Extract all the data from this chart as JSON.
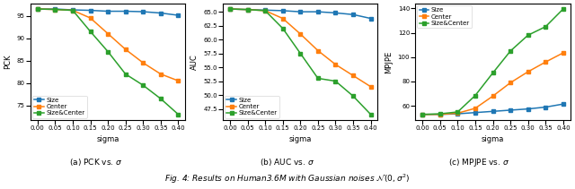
{
  "sigma": [
    0.0,
    0.05,
    0.1,
    0.15,
    0.2,
    0.25,
    0.3,
    0.35,
    0.4
  ],
  "pck_size": [
    96.5,
    96.5,
    96.3,
    96.2,
    96.0,
    96.0,
    95.9,
    95.6,
    95.1
  ],
  "pck_center": [
    96.5,
    96.4,
    96.2,
    94.5,
    91.0,
    87.5,
    84.5,
    82.0,
    80.5
  ],
  "pck_sizecenter": [
    96.5,
    96.4,
    96.2,
    91.5,
    87.0,
    82.0,
    79.5,
    76.5,
    73.0
  ],
  "auc_size": [
    65.5,
    65.4,
    65.3,
    65.2,
    65.0,
    65.0,
    64.8,
    64.5,
    63.8
  ],
  "auc_center": [
    65.5,
    65.4,
    65.2,
    63.8,
    61.0,
    58.0,
    55.5,
    53.5,
    51.5
  ],
  "auc_sizecenter": [
    65.5,
    65.4,
    65.2,
    62.0,
    57.5,
    53.0,
    52.5,
    49.8,
    46.5
  ],
  "mpjpe_size": [
    53.0,
    53.0,
    53.5,
    54.5,
    55.5,
    56.5,
    57.5,
    59.0,
    61.5
  ],
  "mpjpe_center": [
    53.0,
    53.0,
    54.0,
    58.0,
    68.0,
    79.0,
    88.0,
    96.0,
    103.5
  ],
  "mpjpe_sizecenter": [
    53.0,
    53.5,
    55.0,
    68.5,
    87.0,
    105.0,
    118.0,
    125.0,
    139.5
  ],
  "color_size": "#1f77b4",
  "color_center": "#ff7f0e",
  "color_sizeandcenter": "#2ca02c",
  "subplot_captions": [
    "(a) PCK vs. $\\sigma$",
    "(b) AUC vs. $\\sigma$",
    "(c) MPJPE vs. $\\sigma$"
  ],
  "ylabels": [
    "PCK",
    "AUC",
    "MPJPE"
  ],
  "xlabel": "sigma",
  "legend_labels": [
    "Size",
    "Center",
    "Size&Center"
  ],
  "fig_caption": "Fig. 4: Results on Human3.6M with Gaussian noises $\\mathcal{N}(0, \\sigma^2)$",
  "xticks": [
    0.0,
    0.05,
    0.1,
    0.15,
    0.2,
    0.25,
    0.3,
    0.35,
    0.4
  ]
}
